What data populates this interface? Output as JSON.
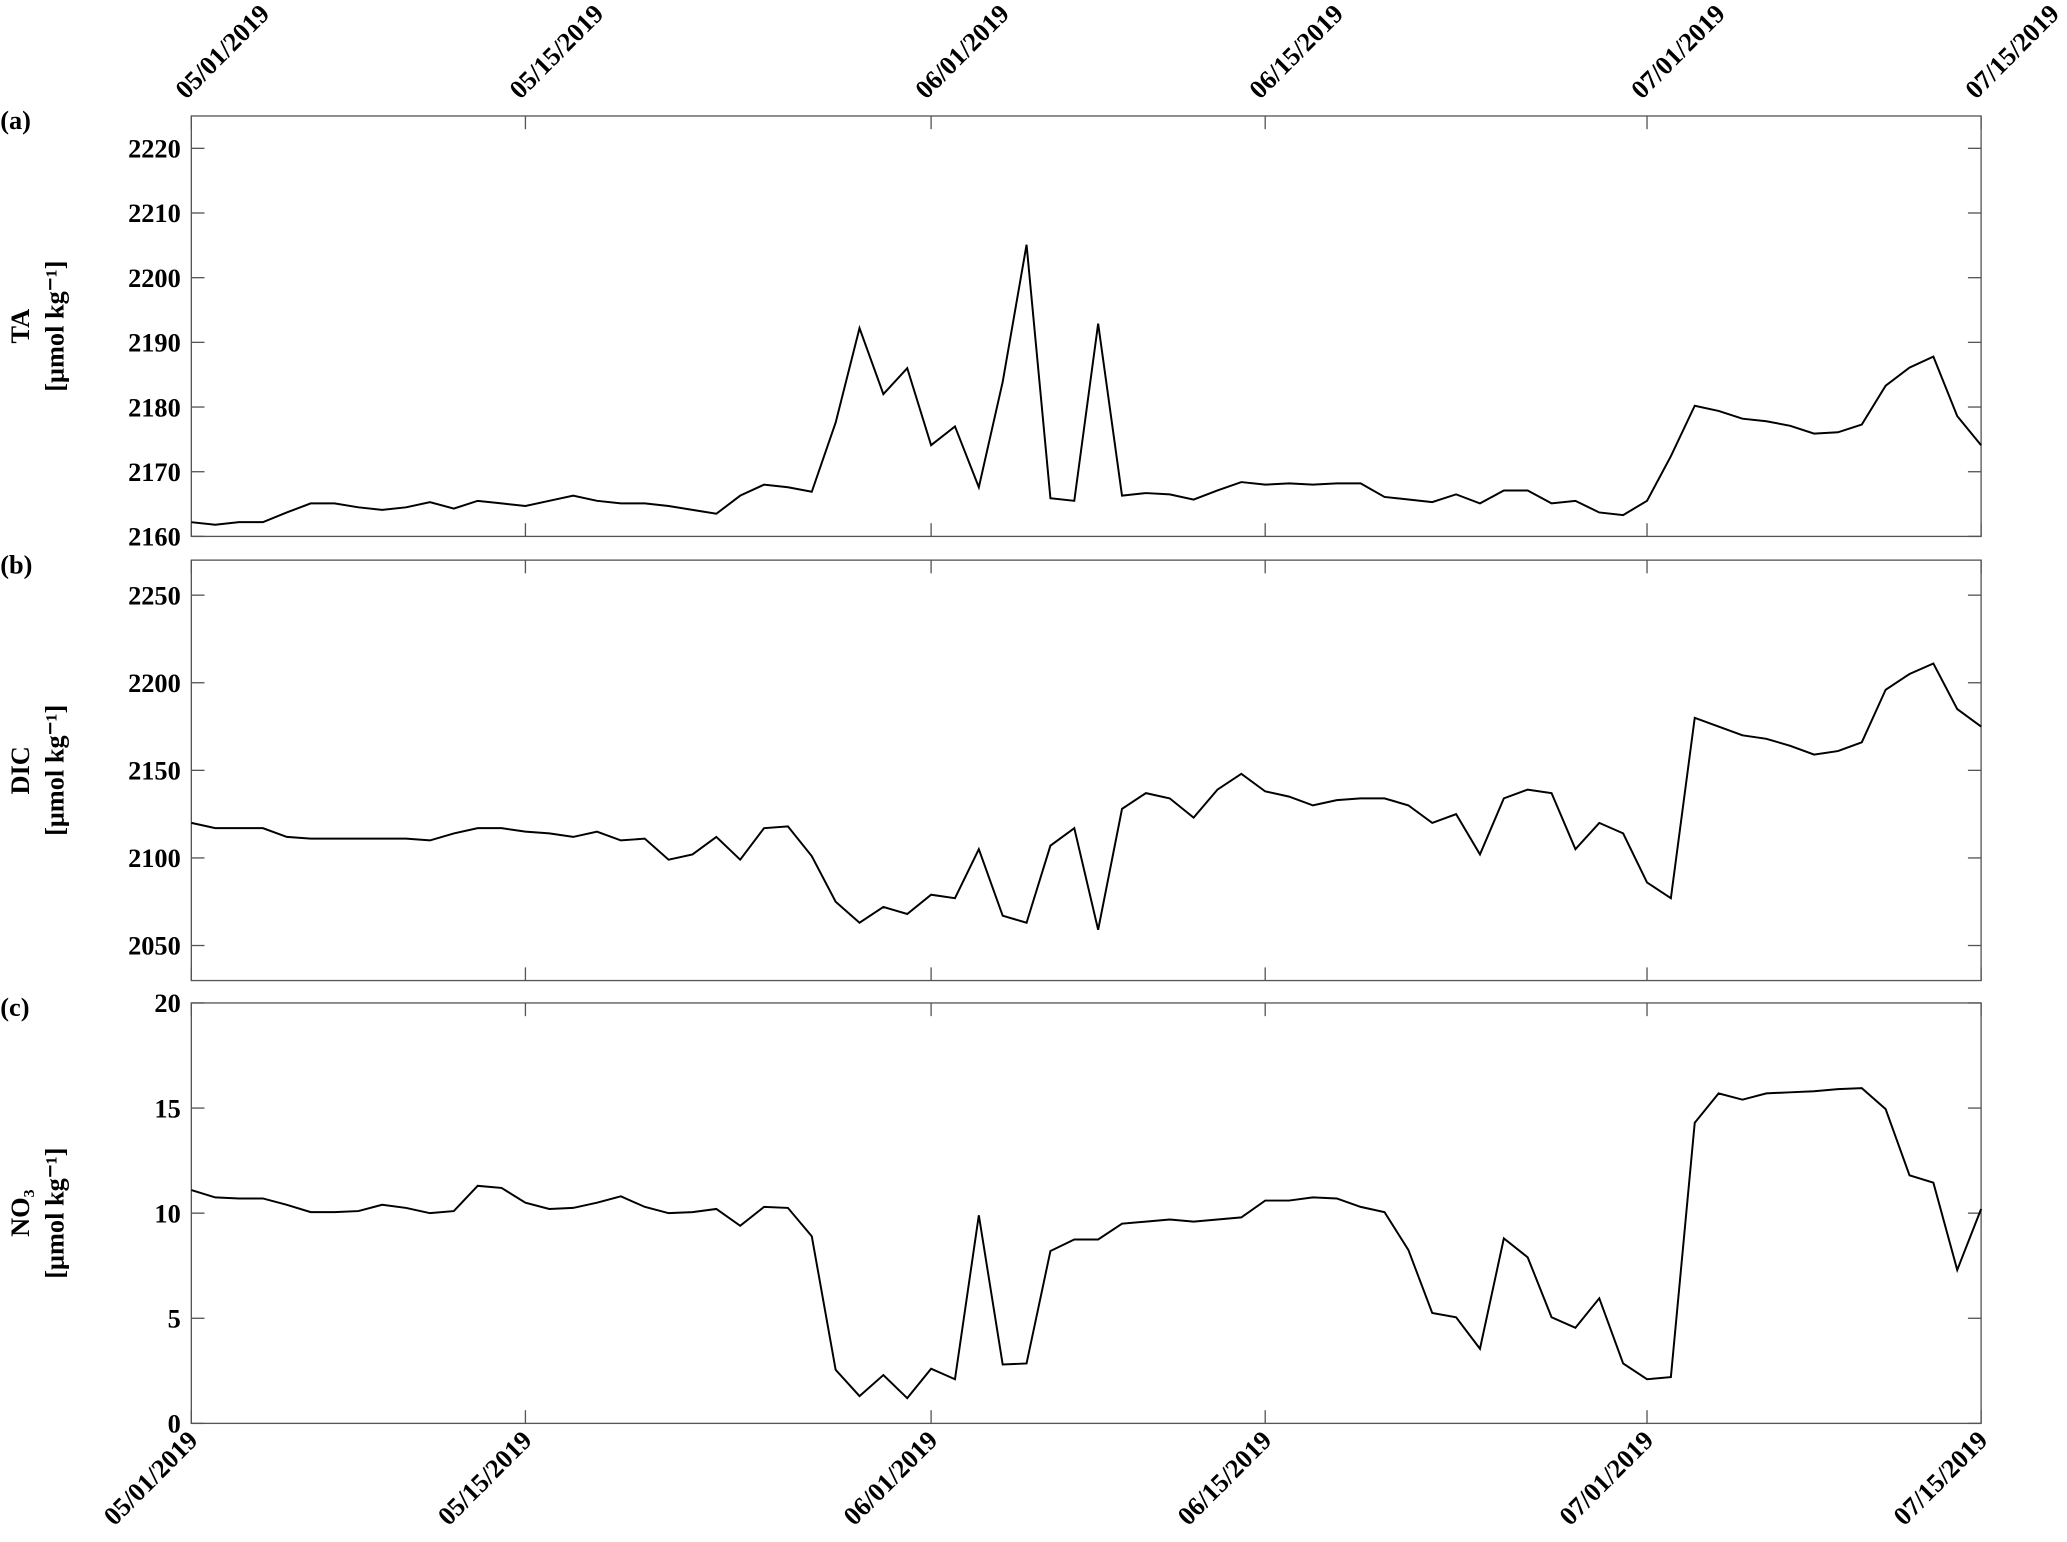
{
  "chart_data": [
    {
      "type": "line",
      "panel_label": "(a)",
      "ylabel": [
        "TA",
        "[μmol kg⁻¹]"
      ],
      "xaxis_labels": "top",
      "x": [
        "05/01/2019",
        "05/02/2019",
        "05/03/2019",
        "05/04/2019",
        "05/05/2019",
        "05/06/2019",
        "05/07/2019",
        "05/08/2019",
        "05/09/2019",
        "05/10/2019",
        "05/11/2019",
        "05/12/2019",
        "05/13/2019",
        "05/14/2019",
        "05/15/2019",
        "05/16/2019",
        "05/17/2019",
        "05/18/2019",
        "05/19/2019",
        "05/20/2019",
        "05/21/2019",
        "05/22/2019",
        "05/23/2019",
        "05/24/2019",
        "05/25/2019",
        "05/26/2019",
        "05/27/2019",
        "05/28/2019",
        "05/29/2019",
        "05/30/2019",
        "05/31/2019",
        "06/01/2019",
        "06/02/2019",
        "06/03/2019",
        "06/04/2019",
        "06/05/2019",
        "06/06/2019",
        "06/07/2019",
        "06/08/2019",
        "06/09/2019",
        "06/10/2019",
        "06/11/2019",
        "06/12/2019",
        "06/13/2019",
        "06/14/2019",
        "06/15/2019",
        "06/16/2019",
        "06/17/2019",
        "06/18/2019",
        "06/19/2019",
        "06/20/2019",
        "06/21/2019",
        "06/22/2019",
        "06/23/2019",
        "06/24/2019",
        "06/25/2019",
        "06/26/2019",
        "06/27/2019",
        "06/28/2019",
        "06/29/2019",
        "06/30/2019",
        "07/01/2019",
        "07/02/2019",
        "07/03/2019",
        "07/04/2019",
        "07/05/2019",
        "07/06/2019",
        "07/07/2019",
        "07/08/2019",
        "07/09/2019",
        "07/10/2019",
        "07/11/2019",
        "07/12/2019",
        "07/13/2019",
        "07/14/2019",
        "07/15/2019"
      ],
      "series": [
        {
          "color": "#000000",
          "values": [
            2162.2,
            2161.8,
            2162.2,
            2162.2,
            2163.7,
            2165.1,
            2165.1,
            2164.5,
            2164.1,
            2164.5,
            2165.3,
            2164.3,
            2165.5,
            2165.1,
            2164.7,
            2165.5,
            2166.3,
            2165.5,
            2165.1,
            2165.1,
            2164.7,
            2164.1,
            2163.5,
            2166.3,
            2168,
            2167.6,
            2166.9,
            2177.6,
            2192.2,
            2182,
            2186,
            2174.1,
            2177,
            2167.6,
            2183.9,
            2205.1,
            2165.9,
            2165.5,
            2192.9,
            2166.3,
            2166.7,
            2166.5,
            2165.7,
            2167.1,
            2168.4,
            2168,
            2168.2,
            2168,
            2168.2,
            2168.2,
            2166.1,
            2165.7,
            2165.3,
            2166.5,
            2165.1,
            2167.1,
            2167.1,
            2165.1,
            2165.5,
            2163.7,
            2163.3,
            2165.5,
            2172.4,
            2180.2,
            2179.4,
            2178.2,
            2177.8,
            2177.1,
            2175.9,
            2176.1,
            2177.3,
            2183.3,
            2186.1,
            2187.8,
            2178.6,
            2174.1
          ]
        }
      ],
      "xlim": [
        "05/01/2019",
        "07/15/2019"
      ],
      "xticks": [
        "05/01/2019",
        "05/15/2019",
        "06/01/2019",
        "06/15/2019",
        "07/01/2019",
        "07/15/2019"
      ],
      "ylim": [
        2160,
        2225
      ],
      "yticks": [
        2160,
        2170,
        2180,
        2190,
        2200,
        2210,
        2220
      ]
    },
    {
      "type": "line",
      "panel_label": "(b)",
      "ylabel": [
        "DIC",
        "[μmol kg⁻¹]"
      ],
      "x": [
        "05/01/2019",
        "05/02/2019",
        "05/03/2019",
        "05/04/2019",
        "05/05/2019",
        "05/06/2019",
        "05/07/2019",
        "05/08/2019",
        "05/09/2019",
        "05/10/2019",
        "05/11/2019",
        "05/12/2019",
        "05/13/2019",
        "05/14/2019",
        "05/15/2019",
        "05/16/2019",
        "05/17/2019",
        "05/18/2019",
        "05/19/2019",
        "05/20/2019",
        "05/21/2019",
        "05/22/2019",
        "05/23/2019",
        "05/24/2019",
        "05/25/2019",
        "05/26/2019",
        "05/27/2019",
        "05/28/2019",
        "05/29/2019",
        "05/30/2019",
        "05/31/2019",
        "06/01/2019",
        "06/02/2019",
        "06/03/2019",
        "06/04/2019",
        "06/05/2019",
        "06/06/2019",
        "06/07/2019",
        "06/08/2019",
        "06/09/2019",
        "06/10/2019",
        "06/11/2019",
        "06/12/2019",
        "06/13/2019",
        "06/14/2019",
        "06/15/2019",
        "06/16/2019",
        "06/17/2019",
        "06/18/2019",
        "06/19/2019",
        "06/20/2019",
        "06/21/2019",
        "06/22/2019",
        "06/23/2019",
        "06/24/2019",
        "06/25/2019",
        "06/26/2019",
        "06/27/2019",
        "06/28/2019",
        "06/29/2019",
        "06/30/2019",
        "07/01/2019",
        "07/02/2019",
        "07/03/2019",
        "07/04/2019",
        "07/05/2019",
        "07/06/2019",
        "07/07/2019",
        "07/08/2019",
        "07/09/2019",
        "07/10/2019",
        "07/11/2019",
        "07/12/2019",
        "07/13/2019",
        "07/14/2019",
        "07/15/2019"
      ],
      "series": [
        {
          "color": "#000000",
          "values": [
            2120,
            2117,
            2117,
            2117,
            2112,
            2111,
            2111,
            2111,
            2111,
            2111,
            2110,
            2114,
            2117,
            2117,
            2115,
            2114,
            2112,
            2115,
            2110,
            2111,
            2099,
            2102,
            2112,
            2099,
            2117,
            2118,
            2101,
            2075,
            2063,
            2072,
            2068,
            2079,
            2077,
            2105,
            2067,
            2063,
            2107,
            2117,
            2059,
            2128,
            2137,
            2134,
            2123,
            2139,
            2148,
            2138,
            2135,
            2130,
            2133,
            2134,
            2134,
            2130,
            2120,
            2125,
            2102,
            2134,
            2139,
            2137,
            2105,
            2120,
            2114,
            2086,
            2077,
            2180,
            2175,
            2170,
            2168,
            2164,
            2159,
            2161,
            2166,
            2196,
            2205,
            2211,
            2185,
            2175
          ]
        }
      ],
      "xlim": [
        "05/01/2019",
        "07/15/2019"
      ],
      "xticks": [
        "05/01/2019",
        "05/15/2019",
        "06/01/2019",
        "06/15/2019",
        "07/01/2019",
        "07/15/2019"
      ],
      "ylim": [
        2030,
        2270
      ],
      "yticks": [
        2050,
        2100,
        2150,
        2200,
        2250
      ]
    },
    {
      "type": "line",
      "panel_label": "(c)",
      "ylabel": [
        "NO₃",
        "[μmol kg⁻¹]"
      ],
      "xaxis_labels": "bottom",
      "x": [
        "05/01/2019",
        "05/02/2019",
        "05/03/2019",
        "05/04/2019",
        "05/05/2019",
        "05/06/2019",
        "05/07/2019",
        "05/08/2019",
        "05/09/2019",
        "05/10/2019",
        "05/11/2019",
        "05/12/2019",
        "05/13/2019",
        "05/14/2019",
        "05/15/2019",
        "05/16/2019",
        "05/17/2019",
        "05/18/2019",
        "05/19/2019",
        "05/20/2019",
        "05/21/2019",
        "05/22/2019",
        "05/23/2019",
        "05/24/2019",
        "05/25/2019",
        "05/26/2019",
        "05/27/2019",
        "05/28/2019",
        "05/29/2019",
        "05/30/2019",
        "05/31/2019",
        "06/01/2019",
        "06/02/2019",
        "06/03/2019",
        "06/04/2019",
        "06/05/2019",
        "06/06/2019",
        "06/07/2019",
        "06/08/2019",
        "06/09/2019",
        "06/10/2019",
        "06/11/2019",
        "06/12/2019",
        "06/13/2019",
        "06/14/2019",
        "06/15/2019",
        "06/16/2019",
        "06/17/2019",
        "06/18/2019",
        "06/19/2019",
        "06/20/2019",
        "06/21/2019",
        "06/22/2019",
        "06/23/2019",
        "06/24/2019",
        "06/25/2019",
        "06/26/2019",
        "06/27/2019",
        "06/28/2019",
        "06/29/2019",
        "06/30/2019",
        "07/01/2019",
        "07/02/2019",
        "07/03/2019",
        "07/04/2019",
        "07/05/2019",
        "07/06/2019",
        "07/07/2019",
        "07/08/2019",
        "07/09/2019",
        "07/10/2019",
        "07/11/2019",
        "07/12/2019",
        "07/13/2019",
        "07/14/2019",
        "07/15/2019"
      ],
      "series": [
        {
          "color": "#000000",
          "values": [
            11.1,
            10.75,
            10.7,
            10.7,
            10.4,
            10.05,
            10.05,
            10.1,
            10.4,
            10.25,
            10,
            10.1,
            11.3,
            11.2,
            10.5,
            10.2,
            10.25,
            10.5,
            10.8,
            10.3,
            10,
            10.05,
            10.2,
            9.4,
            10.3,
            10.25,
            8.9,
            2.55,
            1.3,
            2.3,
            1.2,
            2.6,
            2.1,
            9.9,
            2.8,
            2.85,
            8.2,
            8.75,
            8.75,
            9.5,
            9.6,
            9.7,
            9.6,
            9.7,
            9.8,
            10.6,
            10.6,
            10.75,
            10.7,
            10.3,
            10.05,
            8.25,
            5.25,
            5.05,
            3.55,
            8.8,
            7.9,
            5.05,
            4.55,
            5.95,
            2.85,
            2.1,
            2.2,
            14.3,
            15.7,
            15.4,
            15.7,
            15.75,
            15.8,
            15.9,
            15.95,
            14.95,
            11.8,
            11.45,
            7.3,
            10.2
          ]
        }
      ],
      "xlim": [
        "05/01/2019",
        "07/15/2019"
      ],
      "xticks": [
        "05/01/2019",
        "05/15/2019",
        "06/01/2019",
        "06/15/2019",
        "07/01/2019",
        "07/15/2019"
      ],
      "ylim": [
        0,
        20
      ],
      "yticks": [
        0,
        5,
        10,
        15,
        20
      ]
    }
  ]
}
